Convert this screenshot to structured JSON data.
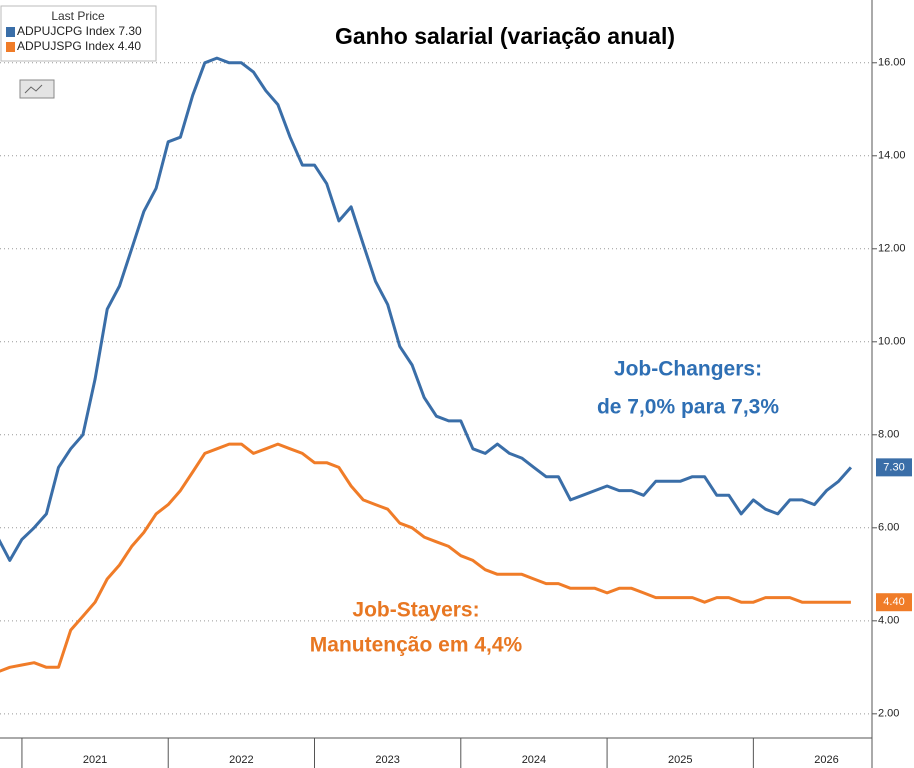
{
  "chart_data": {
    "type": "line",
    "title": "Ganho salarial (variação anual)",
    "legend_title": "Last Price",
    "annotations": [
      "Job-Changers:",
      "de 7,0% para 7,3%",
      "Job-Stayers:",
      "Manutenção em 4,4%"
    ],
    "x": [
      2020.833,
      2020.917,
      2021,
      2021.083,
      2021.167,
      2021.25,
      2021.333,
      2021.417,
      2021.5,
      2021.583,
      2021.667,
      2021.75,
      2021.833,
      2021.917,
      2022,
      2022.083,
      2022.167,
      2022.25,
      2022.333,
      2022.417,
      2022.5,
      2022.583,
      2022.667,
      2022.75,
      2022.833,
      2022.917,
      2023,
      2023.083,
      2023.167,
      2023.25,
      2023.333,
      2023.417,
      2023.5,
      2023.583,
      2023.667,
      2023.75,
      2023.833,
      2023.917,
      2024,
      2024.083,
      2024.167,
      2024.25,
      2024.333,
      2024.417,
      2024.5,
      2024.583,
      2024.667,
      2024.75,
      2024.833,
      2024.917,
      2025,
      2025.083,
      2025.167,
      2025.25,
      2025.333,
      2025.417,
      2025.5,
      2025.583,
      2025.667,
      2025.75,
      2025.833,
      2025.917,
      2026,
      2026.083,
      2026.167,
      2026.25,
      2026.333,
      2026.417,
      2026.5,
      2026.583,
      2026.667
    ],
    "series": [
      {
        "name": "ADPUJCPG Index 7.30",
        "color": "#3a6ea8",
        "last_label": "7.30",
        "values": [
          5.8,
          5.3,
          5.75,
          6.0,
          6.3,
          7.3,
          7.7,
          8.0,
          9.2,
          10.7,
          11.2,
          12.0,
          12.8,
          13.3,
          14.3,
          14.4,
          15.3,
          16.0,
          16.1,
          16.0,
          16.0,
          15.8,
          15.4,
          15.1,
          14.4,
          13.8,
          13.8,
          13.4,
          12.6,
          12.9,
          12.1,
          11.3,
          10.8,
          9.9,
          9.5,
          8.8,
          8.4,
          8.3,
          8.3,
          7.7,
          7.6,
          7.8,
          7.6,
          7.5,
          7.3,
          7.1,
          7.1,
          6.6,
          6.7,
          6.8,
          6.9,
          6.8,
          6.8,
          6.7,
          7.0,
          7.0,
          7.0,
          7.1,
          7.1,
          6.7,
          6.7,
          6.3,
          6.6,
          6.4,
          6.3,
          6.6,
          6.6,
          6.5,
          6.8,
          7.0,
          7.3
        ]
      },
      {
        "name": "ADPUJSPG Index 4.40",
        "color": "#f07c28",
        "last_label": "4.40",
        "values": [
          2.9,
          3.0,
          3.05,
          3.1,
          3.0,
          3.0,
          3.8,
          4.1,
          4.4,
          4.9,
          5.2,
          5.6,
          5.9,
          6.3,
          6.5,
          6.8,
          7.2,
          7.6,
          7.7,
          7.8,
          7.8,
          7.6,
          7.7,
          7.8,
          7.7,
          7.6,
          7.4,
          7.4,
          7.3,
          6.9,
          6.6,
          6.5,
          6.4,
          6.1,
          6.0,
          5.8,
          5.7,
          5.6,
          5.4,
          5.3,
          5.1,
          5.0,
          5.0,
          5.0,
          4.9,
          4.8,
          4.8,
          4.7,
          4.7,
          4.7,
          4.6,
          4.7,
          4.7,
          4.6,
          4.5,
          4.5,
          4.5,
          4.5,
          4.4,
          4.5,
          4.5,
          4.4,
          4.4,
          4.5,
          4.5,
          4.5,
          4.4,
          4.4,
          4.4,
          4.4,
          4.4
        ]
      }
    ],
    "xlim": [
      2020.85,
      2026.77
    ],
    "xticks": [
      2021,
      2022,
      2023,
      2024,
      2025,
      2026
    ],
    "ylim": [
      1.48,
      17.35
    ],
    "yticks": [
      {
        "value": 2,
        "label": "2.00"
      },
      {
        "value": 4,
        "label": "4.00"
      },
      {
        "value": 6,
        "label": "6.00"
      },
      {
        "value": 8,
        "label": "8.00"
      },
      {
        "value": 10,
        "label": "10.00"
      },
      {
        "value": 12,
        "label": "12.00"
      },
      {
        "value": 14,
        "label": "14.00"
      },
      {
        "value": 16,
        "label": "16.00"
      }
    ],
    "grid": true
  }
}
